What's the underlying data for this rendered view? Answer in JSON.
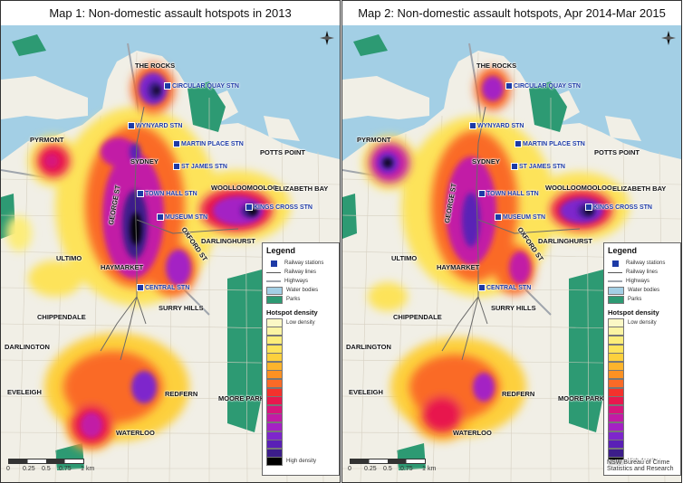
{
  "maps": [
    {
      "title": "Map 1: Non-domestic assault hotspots in 2013"
    },
    {
      "title": "Map 2: Non-domestic assault hotspots, Apr 2014-Mar 2015"
    }
  ],
  "places": {
    "the_rocks": "THE ROCKS",
    "pyrmont": "PYRMONT",
    "sydney": "SYDNEY",
    "potts_point": "POTTS POINT",
    "woolloomooloo": "WOOLLOOMOOLOO",
    "elizabeth_bay": "ELIZABETH BAY",
    "darlinghurst": "DARLINGHURST",
    "ultimo": "ULTIMO",
    "haymarket": "HAYMARKET",
    "chippendale": "CHIPPENDALE",
    "surry_hills": "SURRY HILLS",
    "darlington": "DARLINGTON",
    "eveleigh": "EVELEIGH",
    "redfern": "REDFERN",
    "moore_park": "MOORE PARK",
    "waterloo": "WATERLOO",
    "paddington_fragment": "P"
  },
  "stations": {
    "circular_quay": "CIRCULAR QUAY STN",
    "wynyard": "WYNYARD STN",
    "martin_place": "MARTIN PLACE STN",
    "st_james": "ST JAMES STN",
    "town_hall": "TOWN HALL STN",
    "museum": "MUSEUM STN",
    "kings_cross": "KINGS CROSS STN",
    "central": "CENTRAL STN"
  },
  "streets": {
    "george": "GEORGE ST",
    "oxford": "OXFORD ST"
  },
  "legend": {
    "title": "Legend",
    "railway_stations": "Railway stations",
    "railway_lines": "Railway lines",
    "highways": "Highways",
    "water_bodies": "Water bodies",
    "parks": "Parks",
    "density_title": "Hotspot density",
    "low": "Low density",
    "high": "High density"
  },
  "scale": {
    "t0": "0",
    "t1": "0.25",
    "t2": "0.5",
    "t3": "0.75",
    "t4": "1",
    "unit": "km"
  },
  "credit": {
    "line1": "NSW Bureau of Crime",
    "line2": "Statistics and Research"
  },
  "icons": {
    "compass": "north-arrow-icon",
    "station": "train-station-icon"
  },
  "colors": {
    "water": "#a3cfe5",
    "land": "#f1efe6",
    "parks": "#2d9a73",
    "station_label": "#1d3aa6",
    "density_ramp": [
      "#fbf8c6",
      "#fbf4a3",
      "#fced7a",
      "#fde35a",
      "#fdd03d",
      "#fdb42c",
      "#fc9123",
      "#fa6a27",
      "#f3322c",
      "#e8184e",
      "#d8167c",
      "#c21ba6",
      "#a421c4",
      "#7e26cc",
      "#5a20b6",
      "#3c1d8a",
      "#000000"
    ]
  }
}
